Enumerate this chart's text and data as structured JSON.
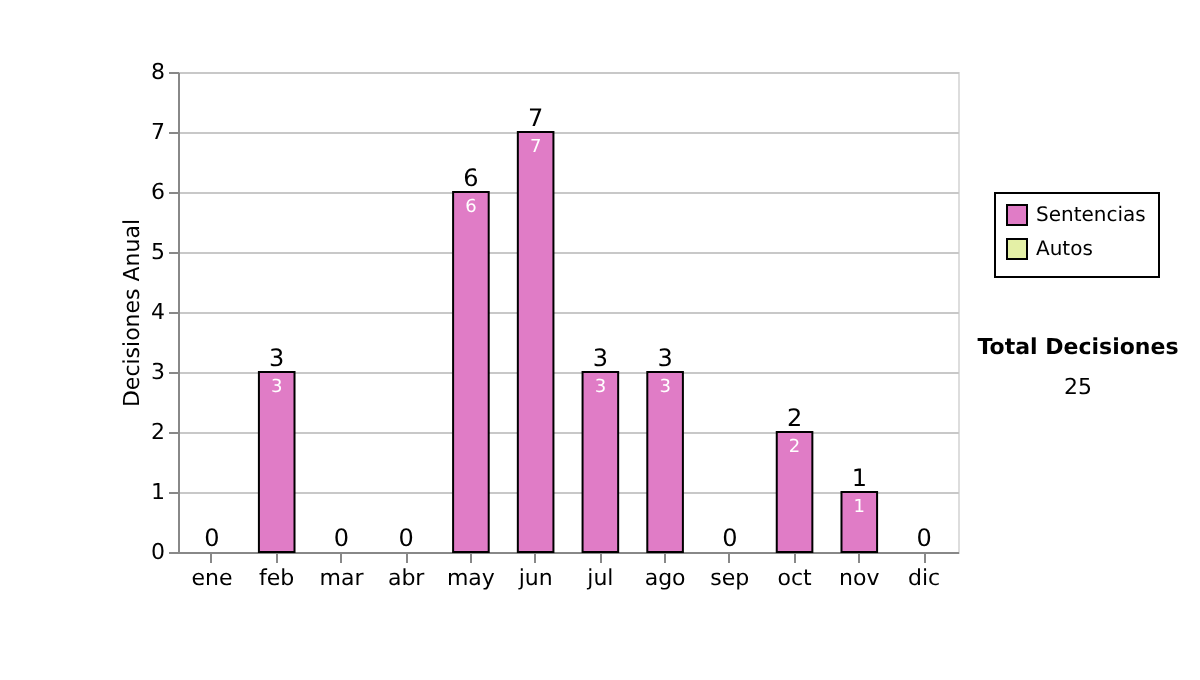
{
  "chart_data": {
    "type": "bar",
    "stacked": true,
    "ylabel": "Decisiones Anual",
    "categories": [
      "ene",
      "feb",
      "mar",
      "abr",
      "may",
      "jun",
      "jul",
      "ago",
      "sep",
      "oct",
      "nov",
      "dic"
    ],
    "series": [
      {
        "name": "Sentencias",
        "color": "#e07cc6",
        "values": [
          0,
          3,
          0,
          0,
          6,
          7,
          3,
          3,
          0,
          2,
          1,
          0
        ],
        "value_labels": [
          null,
          "3",
          null,
          null,
          "6",
          "7",
          "3",
          "3",
          null,
          "2",
          "1",
          null
        ]
      },
      {
        "name": "Autos",
        "color": "#e4f0a6",
        "values": [
          0,
          0,
          0,
          0,
          0,
          0,
          0,
          0,
          0,
          0,
          0,
          0
        ]
      }
    ],
    "totals": [
      "0",
      "3",
      "0",
      "0",
      "6",
      "7",
      "3",
      "3",
      "0",
      "2",
      "1",
      "0"
    ],
    "ylim": [
      0,
      8
    ],
    "yticks": [
      0,
      1,
      2,
      3,
      4,
      5,
      6,
      7,
      8
    ],
    "grid": "y",
    "legend": "right",
    "annotations": [
      "Total Decisiones",
      "25"
    ]
  }
}
